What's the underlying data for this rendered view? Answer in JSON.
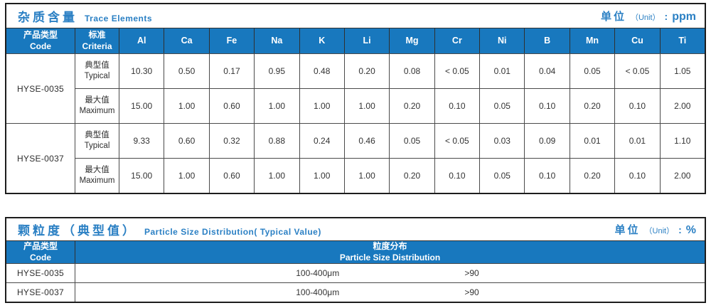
{
  "colors": {
    "header_bg": "#1878be",
    "accent_blue": "#2b80c4",
    "grid_border": "#4a4a4a",
    "outer_border": "#1d1d1d",
    "body_text": "#333333"
  },
  "table1": {
    "title_zh": "杂质含量",
    "title_en": "Trace Elements",
    "unit_zh": "单位",
    "unit_en": "（Unit）",
    "unit_sep": ":",
    "unit_value": "ppm",
    "product_header_zh": "产品类型",
    "product_header_en": "Code",
    "criteria_header_zh": "标准",
    "criteria_header_en": "Criteria",
    "elements": [
      "Al",
      "Ca",
      "Fe",
      "Na",
      "K",
      "Li",
      "Mg",
      "Cr",
      "Ni",
      "B",
      "Mn",
      "Cu",
      "Ti"
    ],
    "groups": [
      {
        "code": "HYSE-0035",
        "rows": [
          {
            "label_zh": "典型值",
            "label_en": "Typical",
            "values": [
              "10.30",
              "0.50",
              "0.17",
              "0.95",
              "0.48",
              "0.20",
              "0.08",
              "< 0.05",
              "0.01",
              "0.04",
              "0.05",
              "< 0.05",
              "1.05"
            ]
          },
          {
            "label_zh": "最大值",
            "label_en": "Maximum",
            "values": [
              "15.00",
              "1.00",
              "0.60",
              "1.00",
              "1.00",
              "1.00",
              "0.20",
              "0.10",
              "0.05",
              "0.10",
              "0.20",
              "0.10",
              "2.00"
            ]
          }
        ]
      },
      {
        "code": "HYSE-0037",
        "rows": [
          {
            "label_zh": "典型值",
            "label_en": "Typical",
            "values": [
              "9.33",
              "0.60",
              "0.32",
              "0.88",
              "0.24",
              "0.46",
              "0.05",
              "< 0.05",
              "0.03",
              "0.09",
              "0.01",
              "0.01",
              "1.10"
            ]
          },
          {
            "label_zh": "最大值",
            "label_en": "Maximum",
            "values": [
              "15.00",
              "1.00",
              "0.60",
              "1.00",
              "1.00",
              "1.00",
              "0.20",
              "0.10",
              "0.05",
              "0.10",
              "0.20",
              "0.10",
              "2.00"
            ]
          }
        ]
      }
    ]
  },
  "table2": {
    "title_zh": "颗粒度（典型值）",
    "title_en": "Particle Size Distribution( Typical Value)",
    "unit_zh": "单位",
    "unit_en": "（Unit）",
    "unit_sep": ":",
    "unit_value": "%",
    "product_header_zh": "产品类型",
    "product_header_en": "Code",
    "dist_header_zh": "粒度分布",
    "dist_header_en": "Particle Size Distribution",
    "rows": [
      {
        "code": "HYSE-0035",
        "range": "100-400μm",
        "value": ">90"
      },
      {
        "code": "HYSE-0037",
        "range": "100-400μm",
        "value": ">90"
      }
    ]
  }
}
